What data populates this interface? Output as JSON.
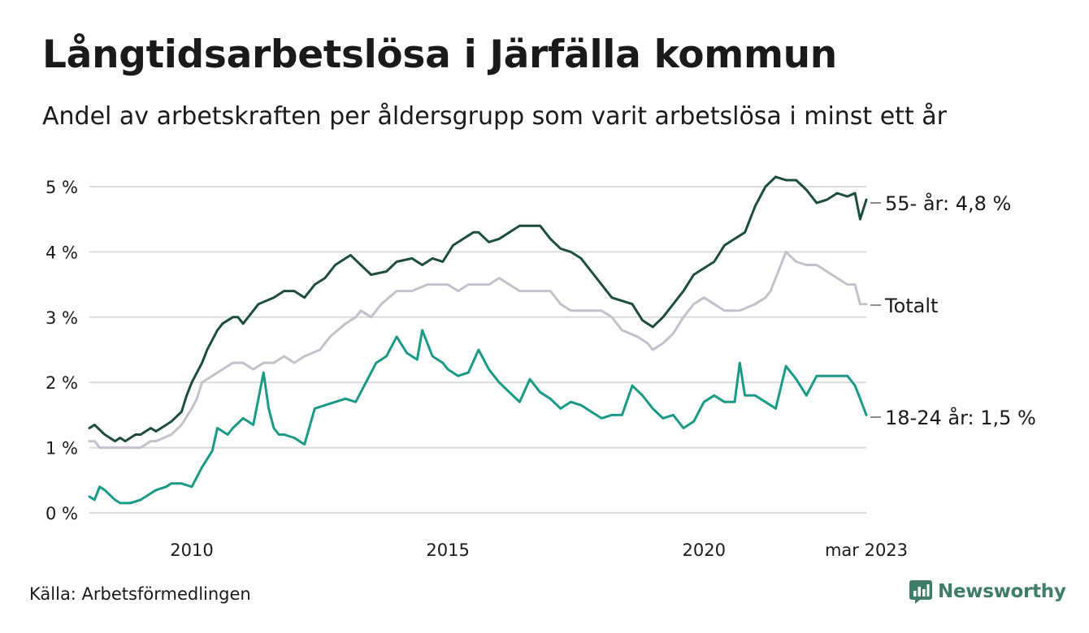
{
  "header": {
    "title": "Långtidsarbetslösa i Järfälla kommun",
    "subtitle": "Andel av arbetskraften per åldersgrupp som varit arbetslösa i minst ett år"
  },
  "footer": {
    "source": "Källa: Arbetsförmedlingen",
    "brand": "Newsworthy"
  },
  "colors": {
    "series_55": "#1e4d3c",
    "series_total": "#c3c1cb",
    "series_18_24": "#1a9a85",
    "grid": "#dcdcdc",
    "brand": "#3f7c69"
  },
  "chart_data": {
    "type": "line",
    "title": "Långtidsarbetslösa i Järfälla kommun",
    "subtitle": "Andel av arbetskraften per åldersgrupp som varit arbetslösa i minst ett år",
    "x_unit": "år (månadsdata)",
    "xlim": [
      2008.0,
      2023.17
    ],
    "ylim": [
      0,
      5.2
    ],
    "y_ticks": [
      0,
      1,
      2,
      3,
      4,
      5
    ],
    "y_tick_labels": [
      "0 %",
      "1 %",
      "2 %",
      "3 %",
      "4 %",
      "5 %"
    ],
    "x_ticks": [
      2010,
      2015,
      2020,
      2023.17
    ],
    "x_tick_labels": [
      "2010",
      "2015",
      "2020",
      "mar 2023"
    ],
    "grid": "horizontal",
    "legend": "end-of-line labels (right)",
    "series": [
      {
        "name": "55- år",
        "end_label": "55- år: 4,8 %",
        "x": [
          2008.0,
          2008.1,
          2008.3,
          2008.5,
          2008.6,
          2008.7,
          2008.9,
          2009.0,
          2009.2,
          2009.3,
          2009.5,
          2009.6,
          2009.8,
          2009.9,
          2010.0,
          2010.2,
          2010.3,
          2010.5,
          2010.6,
          2010.8,
          2010.9,
          2011.0,
          2011.2,
          2011.3,
          2011.6,
          2011.8,
          2012.0,
          2012.2,
          2012.4,
          2012.6,
          2012.8,
          2013.0,
          2013.1,
          2013.3,
          2013.5,
          2013.8,
          2014.0,
          2014.3,
          2014.5,
          2014.7,
          2014.9,
          2015.1,
          2015.3,
          2015.5,
          2015.6,
          2015.8,
          2016.0,
          2016.2,
          2016.4,
          2016.6,
          2016.8,
          2017.0,
          2017.2,
          2017.4,
          2017.6,
          2017.8,
          2018.0,
          2018.2,
          2018.4,
          2018.6,
          2018.8,
          2019.0,
          2019.2,
          2019.4,
          2019.6,
          2019.8,
          2020.0,
          2020.2,
          2020.4,
          2020.6,
          2020.8,
          2021.0,
          2021.2,
          2021.4,
          2021.6,
          2021.8,
          2022.0,
          2022.2,
          2022.4,
          2022.6,
          2022.8,
          2022.95,
          2023.05,
          2023.17
        ],
        "values": [
          1.3,
          1.35,
          1.2,
          1.1,
          1.15,
          1.1,
          1.2,
          1.2,
          1.3,
          1.25,
          1.35,
          1.4,
          1.55,
          1.8,
          2.0,
          2.3,
          2.5,
          2.8,
          2.9,
          3.0,
          3.0,
          2.9,
          3.1,
          3.2,
          3.3,
          3.4,
          3.4,
          3.3,
          3.5,
          3.6,
          3.8,
          3.9,
          3.95,
          3.8,
          3.65,
          3.7,
          3.85,
          3.9,
          3.8,
          3.9,
          3.85,
          4.1,
          4.2,
          4.3,
          4.3,
          4.15,
          4.2,
          4.3,
          4.4,
          4.4,
          4.4,
          4.2,
          4.05,
          4.0,
          3.9,
          3.7,
          3.5,
          3.3,
          3.25,
          3.2,
          2.95,
          2.85,
          3.0,
          3.2,
          3.4,
          3.65,
          3.75,
          3.85,
          4.1,
          4.2,
          4.3,
          4.7,
          5.0,
          5.15,
          5.1,
          5.1,
          4.95,
          4.75,
          4.8,
          4.9,
          4.85,
          4.9,
          4.5,
          4.8
        ]
      },
      {
        "name": "Totalt",
        "end_label": "Totalt",
        "x": [
          2008.0,
          2008.1,
          2008.2,
          2008.5,
          2008.8,
          2009.0,
          2009.2,
          2009.3,
          2009.6,
          2009.8,
          2010.0,
          2010.1,
          2010.2,
          2010.4,
          2010.6,
          2010.8,
          2011.0,
          2011.2,
          2011.4,
          2011.6,
          2011.8,
          2012.0,
          2012.2,
          2012.5,
          2012.7,
          2013.0,
          2013.2,
          2013.3,
          2013.5,
          2013.7,
          2014.0,
          2014.3,
          2014.6,
          2014.8,
          2015.0,
          2015.2,
          2015.4,
          2015.6,
          2015.8,
          2016.0,
          2016.2,
          2016.4,
          2016.6,
          2016.8,
          2017.0,
          2017.2,
          2017.4,
          2017.7,
          2018.0,
          2018.2,
          2018.4,
          2018.7,
          2018.9,
          2019.0,
          2019.2,
          2019.4,
          2019.6,
          2019.8,
          2020.0,
          2020.2,
          2020.4,
          2020.7,
          2021.0,
          2021.2,
          2021.3,
          2021.4,
          2021.6,
          2021.8,
          2022.0,
          2022.2,
          2022.4,
          2022.6,
          2022.8,
          2022.95,
          2023.05,
          2023.17
        ],
        "values": [
          1.1,
          1.1,
          1.0,
          1.0,
          1.0,
          1.0,
          1.1,
          1.1,
          1.2,
          1.35,
          1.6,
          1.75,
          2.0,
          2.1,
          2.2,
          2.3,
          2.3,
          2.2,
          2.3,
          2.3,
          2.4,
          2.3,
          2.4,
          2.5,
          2.7,
          2.9,
          3.0,
          3.1,
          3.0,
          3.2,
          3.4,
          3.4,
          3.5,
          3.5,
          3.5,
          3.4,
          3.5,
          3.5,
          3.5,
          3.6,
          3.5,
          3.4,
          3.4,
          3.4,
          3.4,
          3.2,
          3.1,
          3.1,
          3.1,
          3.0,
          2.8,
          2.7,
          2.6,
          2.5,
          2.6,
          2.75,
          3.0,
          3.2,
          3.3,
          3.2,
          3.1,
          3.1,
          3.2,
          3.3,
          3.4,
          3.6,
          4.0,
          3.85,
          3.8,
          3.8,
          3.7,
          3.6,
          3.5,
          3.5,
          3.2,
          3.2
        ]
      },
      {
        "name": "18-24 år",
        "end_label": "18-24 år: 1,5 %",
        "x": [
          2008.0,
          2008.1,
          2008.2,
          2008.3,
          2008.5,
          2008.6,
          2008.8,
          2009.0,
          2009.2,
          2009.3,
          2009.5,
          2009.6,
          2009.8,
          2010.0,
          2010.2,
          2010.4,
          2010.5,
          2010.7,
          2010.8,
          2011.0,
          2011.2,
          2011.4,
          2011.5,
          2011.6,
          2011.7,
          2011.8,
          2012.0,
          2012.2,
          2012.4,
          2012.6,
          2012.8,
          2013.0,
          2013.2,
          2013.4,
          2013.6,
          2013.8,
          2014.0,
          2014.2,
          2014.4,
          2014.5,
          2014.7,
          2014.9,
          2015.0,
          2015.2,
          2015.4,
          2015.6,
          2015.8,
          2016.0,
          2016.2,
          2016.4,
          2016.6,
          2016.8,
          2017.0,
          2017.2,
          2017.4,
          2017.6,
          2017.8,
          2018.0,
          2018.2,
          2018.4,
          2018.6,
          2018.8,
          2019.0,
          2019.2,
          2019.4,
          2019.6,
          2019.8,
          2020.0,
          2020.2,
          2020.4,
          2020.6,
          2020.7,
          2020.8,
          2021.0,
          2021.2,
          2021.4,
          2021.6,
          2021.8,
          2022.0,
          2022.2,
          2022.4,
          2022.6,
          2022.8,
          2022.95,
          2023.05,
          2023.17
        ],
        "values": [
          0.25,
          0.2,
          0.4,
          0.35,
          0.2,
          0.15,
          0.15,
          0.2,
          0.3,
          0.35,
          0.4,
          0.45,
          0.45,
          0.4,
          0.7,
          0.95,
          1.3,
          1.2,
          1.3,
          1.45,
          1.35,
          2.15,
          1.6,
          1.3,
          1.2,
          1.2,
          1.15,
          1.05,
          1.6,
          1.65,
          1.7,
          1.75,
          1.7,
          2.0,
          2.3,
          2.4,
          2.7,
          2.45,
          2.35,
          2.8,
          2.4,
          2.3,
          2.2,
          2.1,
          2.15,
          2.5,
          2.2,
          2.0,
          1.85,
          1.7,
          2.05,
          1.85,
          1.75,
          1.6,
          1.7,
          1.65,
          1.55,
          1.45,
          1.5,
          1.5,
          1.95,
          1.8,
          1.6,
          1.45,
          1.5,
          1.3,
          1.4,
          1.7,
          1.8,
          1.7,
          1.7,
          2.3,
          1.8,
          1.8,
          1.7,
          1.6,
          2.25,
          2.05,
          1.8,
          2.1,
          2.1,
          2.1,
          2.1,
          1.95,
          1.75,
          1.5
        ]
      }
    ]
  }
}
